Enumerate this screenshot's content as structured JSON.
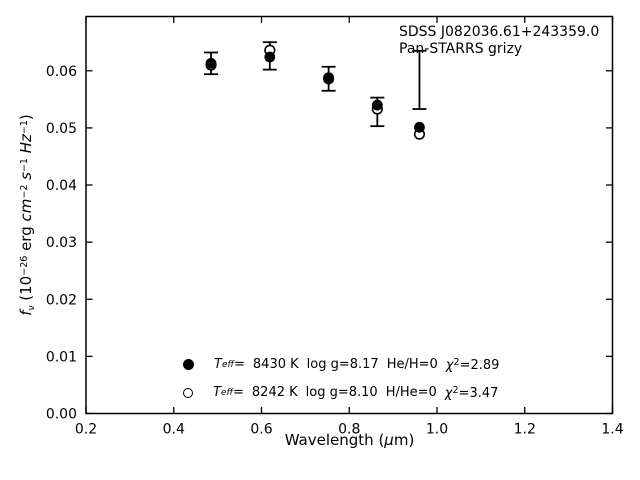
{
  "window": {
    "background": "#ffffff",
    "foreground": "#000000"
  },
  "chart_data": {
    "type": "scatter",
    "annotation": [
      "SDSS J082036.61+243359.0",
      "Pan-STARRS grizy"
    ],
    "xlabel": {
      "prefix": "Wavelength (",
      "mu": "μ",
      "suffix": "m)"
    },
    "ylabel": {
      "f": "f",
      "nu": "ν",
      "p1": " (10",
      "e1": "−26",
      "p2": " erg ",
      "cm": "cm",
      "e2": "−2",
      "s": " s",
      "e3": "−1",
      "hz": " Hz",
      "e4": "−1",
      "p5": ")"
    },
    "xlim": [
      0.2,
      1.4
    ],
    "ylim": [
      0,
      0.0695
    ],
    "grid": false,
    "tick_direction": "in",
    "x_ticks": {
      "values": [
        0.2,
        0.4,
        0.6,
        0.8,
        1.0,
        1.2,
        1.4
      ],
      "labels": [
        "0.2",
        "0.4",
        "0.6",
        "0.8",
        "1.0",
        "1.2",
        "1.4"
      ]
    },
    "y_ticks": {
      "values": [
        0,
        0.01,
        0.02,
        0.03,
        0.04,
        0.05,
        0.06
      ],
      "labels": [
        "0.00",
        "0.01",
        "0.02",
        "0.03",
        "0.04",
        "0.05",
        "0.06"
      ]
    },
    "bands": [
      "g",
      "r",
      "i",
      "z",
      "y"
    ],
    "x": [
      0.485,
      0.619,
      0.753,
      0.864,
      0.96
    ],
    "series": [
      {
        "name": "observed-photometry",
        "style": "errorbar",
        "center": [
          0.0613,
          0.0626,
          0.0586,
          0.0528,
          0.0584
        ],
        "err": [
          0.0019,
          0.0024,
          0.0021,
          0.0025,
          0.0051
        ]
      },
      {
        "name": "model-8430K-filled",
        "style": "filled-circle",
        "values": [
          0.0613,
          0.0624,
          0.0588,
          0.054,
          0.0501
        ]
      },
      {
        "name": "model-8242K-open",
        "style": "open-circle",
        "values": [
          0.061,
          0.0636,
          0.0586,
          0.0533,
          0.0489
        ]
      }
    ]
  },
  "legend": {
    "rows": [
      {
        "marker": "filled-circle",
        "t": "T",
        "t_sub": "eff",
        "eq": "=",
        "teff": "8430 K",
        "logg": "log g=8.17",
        "abundance": "He/H=0",
        "chi": "χ",
        "chi_exp": "2",
        "chi_val": "=2.89"
      },
      {
        "marker": "open-circle",
        "t": "T",
        "t_sub": "eff",
        "eq": "=",
        "teff": "8242 K",
        "logg": "log g=8.10",
        "abundance": "H/He=0",
        "chi": "χ",
        "chi_exp": "2",
        "chi_val": "=3.47"
      }
    ]
  }
}
